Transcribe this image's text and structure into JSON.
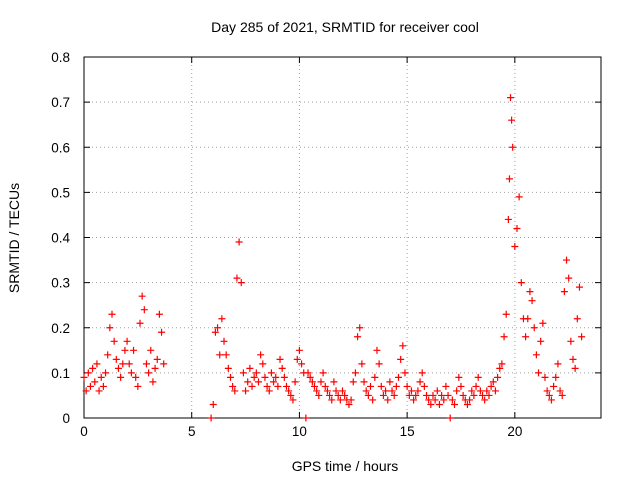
{
  "chart_data": {
    "type": "scatter",
    "title": "Day 285 of 2021, SRMTID for receiver cool",
    "xlabel": "GPS time / hours",
    "ylabel": "SRMTID / TECUs",
    "xlim": [
      0,
      24
    ],
    "ylim": [
      0,
      0.8
    ],
    "xticks": [
      "0",
      "5",
      "10",
      "15",
      "20"
    ],
    "yticks": [
      "0",
      "0.1",
      "0.2",
      "0.3",
      "0.4",
      "0.5",
      "0.6",
      "0.7",
      "0.8"
    ],
    "grid": true,
    "marker": "plus",
    "color": "#ff0000",
    "series": [
      {
        "name": "SRMTID",
        "points": [
          [
            0.0,
            0.09
          ],
          [
            0.1,
            0.06
          ],
          [
            0.2,
            0.1
          ],
          [
            0.3,
            0.07
          ],
          [
            0.4,
            0.11
          ],
          [
            0.5,
            0.08
          ],
          [
            0.6,
            0.12
          ],
          [
            0.7,
            0.06
          ],
          [
            0.8,
            0.09
          ],
          [
            0.9,
            0.07
          ],
          [
            1.0,
            0.1
          ],
          [
            1.1,
            0.14
          ],
          [
            1.2,
            0.2
          ],
          [
            1.3,
            0.23
          ],
          [
            1.4,
            0.17
          ],
          [
            1.5,
            0.13
          ],
          [
            1.6,
            0.11
          ],
          [
            1.7,
            0.09
          ],
          [
            1.8,
            0.12
          ],
          [
            1.9,
            0.15
          ],
          [
            2.0,
            0.17
          ],
          [
            2.1,
            0.12
          ],
          [
            2.2,
            0.1
          ],
          [
            2.3,
            0.15
          ],
          [
            2.4,
            0.09
          ],
          [
            2.5,
            0.07
          ],
          [
            2.6,
            0.21
          ],
          [
            2.7,
            0.27
          ],
          [
            2.8,
            0.24
          ],
          [
            2.9,
            0.12
          ],
          [
            3.0,
            0.1
          ],
          [
            3.1,
            0.15
          ],
          [
            3.2,
            0.08
          ],
          [
            3.3,
            0.11
          ],
          [
            3.4,
            0.13
          ],
          [
            3.5,
            0.23
          ],
          [
            3.6,
            0.19
          ],
          [
            3.7,
            0.12
          ],
          [
            5.9,
            0.0
          ],
          [
            6.0,
            0.03
          ],
          [
            6.1,
            0.19
          ],
          [
            6.2,
            0.2
          ],
          [
            6.3,
            0.14
          ],
          [
            6.4,
            0.22
          ],
          [
            6.5,
            0.17
          ],
          [
            6.6,
            0.14
          ],
          [
            6.7,
            0.11
          ],
          [
            6.8,
            0.09
          ],
          [
            6.9,
            0.07
          ],
          [
            7.0,
            0.06
          ],
          [
            7.1,
            0.31
          ],
          [
            7.2,
            0.39
          ],
          [
            7.3,
            0.3
          ],
          [
            7.4,
            0.1
          ],
          [
            7.5,
            0.06
          ],
          [
            7.6,
            0.08
          ],
          [
            7.7,
            0.11
          ],
          [
            7.8,
            0.07
          ],
          [
            7.9,
            0.09
          ],
          [
            8.0,
            0.1
          ],
          [
            8.1,
            0.08
          ],
          [
            8.2,
            0.14
          ],
          [
            8.3,
            0.12
          ],
          [
            8.4,
            0.09
          ],
          [
            8.5,
            0.07
          ],
          [
            8.6,
            0.06
          ],
          [
            8.7,
            0.1
          ],
          [
            8.8,
            0.08
          ],
          [
            8.9,
            0.09
          ],
          [
            9.0,
            0.07
          ],
          [
            9.1,
            0.13
          ],
          [
            9.2,
            0.11
          ],
          [
            9.3,
            0.09
          ],
          [
            9.4,
            0.07
          ],
          [
            9.5,
            0.06
          ],
          [
            9.6,
            0.05
          ],
          [
            9.7,
            0.04
          ],
          [
            9.8,
            0.08
          ],
          [
            9.9,
            0.13
          ],
          [
            10.0,
            0.15
          ],
          [
            10.1,
            0.12
          ],
          [
            10.2,
            0.1
          ],
          [
            10.3,
            0.0
          ],
          [
            10.4,
            0.1
          ],
          [
            10.5,
            0.09
          ],
          [
            10.6,
            0.08
          ],
          [
            10.7,
            0.07
          ],
          [
            10.8,
            0.06
          ],
          [
            10.9,
            0.05
          ],
          [
            11.0,
            0.08
          ],
          [
            11.1,
            0.1
          ],
          [
            11.2,
            0.07
          ],
          [
            11.3,
            0.06
          ],
          [
            11.4,
            0.05
          ],
          [
            11.5,
            0.04
          ],
          [
            11.6,
            0.08
          ],
          [
            11.7,
            0.06
          ],
          [
            11.8,
            0.05
          ],
          [
            11.9,
            0.04
          ],
          [
            12.0,
            0.06
          ],
          [
            12.1,
            0.05
          ],
          [
            12.2,
            0.04
          ],
          [
            12.3,
            0.03
          ],
          [
            12.4,
            0.04
          ],
          [
            12.5,
            0.08
          ],
          [
            12.6,
            0.1
          ],
          [
            12.7,
            0.18
          ],
          [
            12.8,
            0.2
          ],
          [
            12.9,
            0.12
          ],
          [
            13.0,
            0.08
          ],
          [
            13.1,
            0.06
          ],
          [
            13.2,
            0.05
          ],
          [
            13.3,
            0.07
          ],
          [
            13.4,
            0.04
          ],
          [
            13.5,
            0.09
          ],
          [
            13.6,
            0.15
          ],
          [
            13.7,
            0.12
          ],
          [
            13.8,
            0.07
          ],
          [
            13.9,
            0.05
          ],
          [
            14.0,
            0.06
          ],
          [
            14.1,
            0.04
          ],
          [
            14.2,
            0.08
          ],
          [
            14.3,
            0.06
          ],
          [
            14.4,
            0.05
          ],
          [
            14.5,
            0.07
          ],
          [
            14.6,
            0.09
          ],
          [
            14.7,
            0.13
          ],
          [
            14.8,
            0.16
          ],
          [
            14.9,
            0.1
          ],
          [
            15.0,
            0.07
          ],
          [
            15.1,
            0.05
          ],
          [
            15.2,
            0.06
          ],
          [
            15.3,
            0.04
          ],
          [
            15.4,
            0.05
          ],
          [
            15.5,
            0.06
          ],
          [
            15.6,
            0.08
          ],
          [
            15.7,
            0.1
          ],
          [
            15.8,
            0.07
          ],
          [
            15.9,
            0.05
          ],
          [
            16.0,
            0.04
          ],
          [
            16.1,
            0.03
          ],
          [
            16.2,
            0.05
          ],
          [
            16.3,
            0.04
          ],
          [
            16.4,
            0.06
          ],
          [
            16.5,
            0.03
          ],
          [
            16.6,
            0.05
          ],
          [
            16.7,
            0.04
          ],
          [
            16.8,
            0.07
          ],
          [
            16.9,
            0.05
          ],
          [
            17.0,
            0.0
          ],
          [
            17.1,
            0.04
          ],
          [
            17.2,
            0.03
          ],
          [
            17.3,
            0.06
          ],
          [
            17.4,
            0.09
          ],
          [
            17.5,
            0.07
          ],
          [
            17.6,
            0.05
          ],
          [
            17.7,
            0.04
          ],
          [
            17.8,
            0.03
          ],
          [
            17.9,
            0.04
          ],
          [
            18.0,
            0.06
          ],
          [
            18.1,
            0.05
          ],
          [
            18.2,
            0.07
          ],
          [
            18.3,
            0.09
          ],
          [
            18.4,
            0.06
          ],
          [
            18.5,
            0.05
          ],
          [
            18.6,
            0.04
          ],
          [
            18.7,
            0.06
          ],
          [
            18.8,
            0.05
          ],
          [
            18.9,
            0.07
          ],
          [
            19.0,
            0.08
          ],
          [
            19.1,
            0.06
          ],
          [
            19.2,
            0.09
          ],
          [
            19.3,
            0.11
          ],
          [
            19.4,
            0.12
          ],
          [
            19.5,
            0.18
          ],
          [
            19.6,
            0.23
          ],
          [
            19.7,
            0.44
          ],
          [
            19.75,
            0.53
          ],
          [
            19.8,
            0.71
          ],
          [
            19.85,
            0.66
          ],
          [
            19.9,
            0.6
          ],
          [
            20.0,
            0.38
          ],
          [
            20.1,
            0.42
          ],
          [
            20.2,
            0.49
          ],
          [
            20.3,
            0.3
          ],
          [
            20.4,
            0.22
          ],
          [
            20.5,
            0.18
          ],
          [
            20.6,
            0.22
          ],
          [
            20.7,
            0.28
          ],
          [
            20.8,
            0.26
          ],
          [
            20.9,
            0.2
          ],
          [
            21.0,
            0.14
          ],
          [
            21.1,
            0.1
          ],
          [
            21.2,
            0.17
          ],
          [
            21.3,
            0.21
          ],
          [
            21.4,
            0.09
          ],
          [
            21.5,
            0.06
          ],
          [
            21.6,
            0.05
          ],
          [
            21.7,
            0.04
          ],
          [
            21.8,
            0.07
          ],
          [
            21.9,
            0.09
          ],
          [
            22.0,
            0.12
          ],
          [
            22.1,
            0.06
          ],
          [
            22.2,
            0.05
          ],
          [
            22.3,
            0.28
          ],
          [
            22.4,
            0.35
          ],
          [
            22.5,
            0.31
          ],
          [
            22.6,
            0.17
          ],
          [
            22.7,
            0.13
          ],
          [
            22.8,
            0.11
          ],
          [
            22.9,
            0.22
          ],
          [
            23.0,
            0.29
          ],
          [
            23.1,
            0.18
          ]
        ]
      }
    ]
  }
}
